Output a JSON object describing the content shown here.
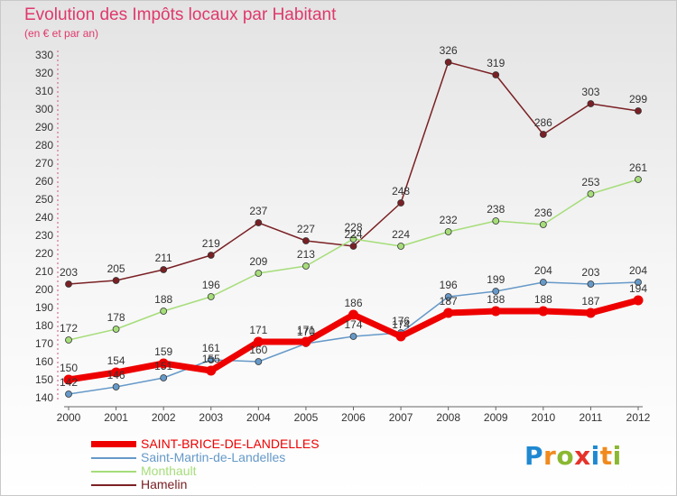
{
  "title": "Evolution des Impôts locaux par Habitant",
  "subtitle": "(en € et par an)",
  "logo": {
    "text": "Proxiti",
    "letter_colors": [
      "#1f88d1",
      "#f08a1d",
      "#8ab832",
      "#e6332a",
      "#1f88d1",
      "#f08a1d",
      "#8ab832"
    ]
  },
  "chart_data": {
    "type": "line",
    "title": "Evolution des Impôts locaux par Habitant",
    "subtitle": "(en € et par an)",
    "xlabel": "",
    "ylabel": "",
    "x": [
      "2000",
      "2001",
      "2002",
      "2003",
      "2004",
      "2005",
      "2006",
      "2007",
      "2008",
      "2009",
      "2010",
      "2011",
      "2012"
    ],
    "ylim": [
      140,
      330
    ],
    "yticks": [
      140,
      150,
      160,
      170,
      180,
      190,
      200,
      210,
      220,
      230,
      240,
      250,
      260,
      270,
      280,
      290,
      300,
      310,
      320,
      330
    ],
    "grid": false,
    "legend_position": "bottom-left",
    "series": [
      {
        "name": "Hamelin",
        "color": "#7a2024",
        "values": [
          203,
          205,
          211,
          219,
          237,
          227,
          224,
          248,
          326,
          319,
          286,
          303,
          299
        ]
      },
      {
        "name": "Monthault",
        "color": "#a6dd7a",
        "values": [
          172,
          178,
          188,
          196,
          209,
          213,
          228,
          224,
          232,
          238,
          236,
          253,
          261
        ]
      },
      {
        "name": "Saint-Martin-de-Landelles",
        "color": "#6699c8",
        "values": [
          142,
          146,
          151,
          161,
          160,
          170,
          174,
          176,
          196,
          199,
          204,
          203,
          204
        ]
      },
      {
        "name": "SAINT-BRICE-DE-LANDELLES",
        "color": "#ee0000",
        "values": [
          150,
          154,
          159,
          155,
          171,
          171,
          186,
          174,
          187,
          188,
          188,
          187,
          194
        ]
      }
    ],
    "legend_order": [
      "SAINT-BRICE-DE-LANDELLES",
      "Saint-Martin-de-Landelles",
      "Monthault",
      "Hamelin"
    ]
  }
}
